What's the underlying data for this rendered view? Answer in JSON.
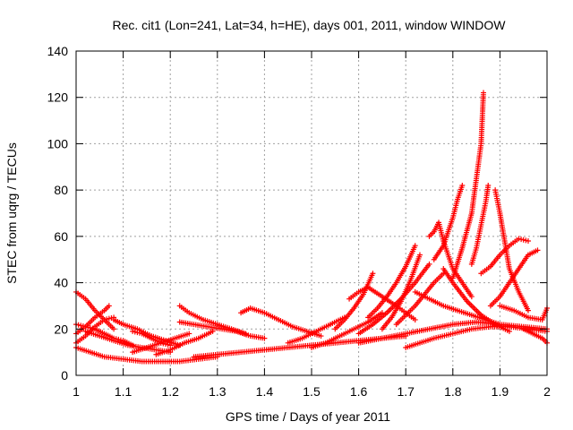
{
  "chart_data": {
    "type": "scatter",
    "title": "Rec. cit1 (Lon=241, Lat=34, h=HE), days 001, 2011, window WINDOW",
    "xlabel": "GPS time / Days of year 2011",
    "ylabel": "STEC from uqrg / TECUs",
    "xlim": [
      1,
      2
    ],
    "ylim": [
      0,
      140
    ],
    "x_ticks": [
      1,
      1.1,
      1.2,
      1.3,
      1.4,
      1.5,
      1.6,
      1.7,
      1.8,
      1.9,
      2
    ],
    "x_tick_labels": [
      "1",
      "1.1",
      "1.2",
      "1.3",
      "1.4",
      "1.5",
      "1.6",
      "1.7",
      "1.8",
      "1.9",
      "2"
    ],
    "y_ticks": [
      0,
      20,
      40,
      60,
      80,
      100,
      120,
      140
    ],
    "y_tick_labels": [
      "0",
      "20",
      "40",
      "60",
      "80",
      "100",
      "120",
      "140"
    ],
    "grid": true,
    "marker": "+",
    "color": "#ff0000",
    "series": [
      {
        "x": [
          1.0,
          1.03,
          1.06,
          1.1,
          1.14,
          1.18,
          1.22,
          1.26,
          1.3
        ],
        "y": [
          12,
          10,
          8,
          7,
          6,
          6,
          6,
          7,
          8
        ]
      },
      {
        "x": [
          1.0,
          1.02,
          1.04,
          1.06,
          1.08
        ],
        "y": [
          36,
          33,
          28,
          24,
          20
        ]
      },
      {
        "x": [
          1.0,
          1.02,
          1.04,
          1.06,
          1.08,
          1.1,
          1.12
        ],
        "y": [
          22,
          21,
          20,
          18,
          16,
          15,
          13
        ]
      },
      {
        "x": [
          1.02,
          1.05,
          1.08,
          1.11,
          1.14,
          1.17,
          1.2
        ],
        "y": [
          19,
          17,
          15,
          13,
          12,
          11,
          10
        ]
      },
      {
        "x": [
          1.0,
          1.02,
          1.04,
          1.06,
          1.07
        ],
        "y": [
          18,
          21,
          25,
          28,
          30
        ]
      },
      {
        "x": [
          1.0,
          1.02,
          1.04,
          1.06,
          1.08
        ],
        "y": [
          14,
          17,
          21,
          24,
          25
        ]
      },
      {
        "x": [
          1.08,
          1.1,
          1.13,
          1.16,
          1.19,
          1.22
        ],
        "y": [
          24,
          22,
          20,
          17,
          15,
          13
        ]
      },
      {
        "x": [
          1.12,
          1.14,
          1.16,
          1.18,
          1.2
        ],
        "y": [
          19,
          18,
          16,
          14,
          13
        ]
      },
      {
        "x": [
          1.12,
          1.15,
          1.18,
          1.21,
          1.24
        ],
        "y": [
          10,
          12,
          14,
          16,
          18
        ]
      },
      {
        "x": [
          1.17,
          1.2,
          1.23,
          1.26,
          1.29
        ],
        "y": [
          9,
          11,
          14,
          16,
          19
        ]
      },
      {
        "x": [
          1.22,
          1.24,
          1.27,
          1.3,
          1.33,
          1.36
        ],
        "y": [
          30,
          27,
          24,
          22,
          20,
          18
        ]
      },
      {
        "x": [
          1.22,
          1.25,
          1.28,
          1.31,
          1.34,
          1.37,
          1.4
        ],
        "y": [
          23,
          22,
          21,
          20,
          19,
          17,
          16
        ]
      },
      {
        "x": [
          1.25,
          1.3,
          1.35,
          1.4,
          1.45,
          1.5,
          1.55,
          1.6,
          1.65,
          1.7
        ],
        "y": [
          8,
          9,
          10,
          11,
          12,
          13,
          14,
          15,
          16,
          17
        ]
      },
      {
        "x": [
          1.35,
          1.37,
          1.4,
          1.43,
          1.46,
          1.49,
          1.52
        ],
        "y": [
          27,
          29,
          27,
          24,
          21,
          19,
          17
        ]
      },
      {
        "x": [
          1.45,
          1.48,
          1.51,
          1.54,
          1.57
        ],
        "y": [
          14,
          16,
          19,
          22,
          25
        ]
      },
      {
        "x": [
          1.5,
          1.53,
          1.56,
          1.59,
          1.62,
          1.65
        ],
        "y": [
          12,
          14,
          17,
          20,
          23,
          27
        ]
      },
      {
        "x": [
          1.55,
          1.57,
          1.59,
          1.61,
          1.63
        ],
        "y": [
          20,
          24,
          29,
          35,
          44
        ]
      },
      {
        "x": [
          1.58,
          1.6,
          1.62,
          1.65,
          1.68,
          1.7,
          1.72
        ],
        "y": [
          33,
          36,
          38,
          34,
          30,
          27,
          24
        ]
      },
      {
        "x": [
          1.6,
          1.63,
          1.66,
          1.69,
          1.72,
          1.75
        ],
        "y": [
          18,
          22,
          27,
          33,
          40,
          48
        ]
      },
      {
        "x": [
          1.62,
          1.64,
          1.66,
          1.68,
          1.7,
          1.72
        ],
        "y": [
          25,
          29,
          34,
          40,
          47,
          56
        ]
      },
      {
        "x": [
          1.65,
          1.67,
          1.69,
          1.71,
          1.73
        ],
        "y": [
          20,
          25,
          32,
          41,
          52
        ]
      },
      {
        "x": [
          1.68,
          1.7,
          1.72,
          1.74,
          1.76,
          1.78
        ],
        "y": [
          22,
          26,
          30,
          35,
          40,
          44
        ]
      },
      {
        "x": [
          1.75,
          1.76,
          1.77,
          1.78,
          1.79,
          1.8,
          1.82,
          1.84
        ],
        "y": [
          60,
          62,
          66,
          58,
          52,
          46,
          40,
          34
        ]
      },
      {
        "x": [
          1.76,
          1.78,
          1.79,
          1.8,
          1.81,
          1.82
        ],
        "y": [
          50,
          56,
          62,
          68,
          76,
          82
        ]
      },
      {
        "x": [
          1.8,
          1.82,
          1.84,
          1.85,
          1.86,
          1.865
        ],
        "y": [
          42,
          55,
          70,
          85,
          100,
          122
        ]
      },
      {
        "x": [
          1.84,
          1.85,
          1.86,
          1.87,
          1.875
        ],
        "y": [
          48,
          55,
          65,
          75,
          82
        ]
      },
      {
        "x": [
          1.89,
          1.9,
          1.91,
          1.92,
          1.94,
          1.96
        ],
        "y": [
          80,
          70,
          58,
          46,
          36,
          28
        ]
      },
      {
        "x": [
          1.86,
          1.88,
          1.9,
          1.92,
          1.94,
          1.96
        ],
        "y": [
          44,
          47,
          52,
          56,
          59,
          58
        ]
      },
      {
        "x": [
          1.88,
          1.9,
          1.92,
          1.94,
          1.96,
          1.98
        ],
        "y": [
          30,
          34,
          40,
          46,
          52,
          54
        ]
      },
      {
        "x": [
          1.7,
          1.73,
          1.76,
          1.8,
          1.84,
          1.88,
          1.92,
          1.96,
          2.0
        ],
        "y": [
          12,
          14,
          16,
          18,
          20,
          21,
          21,
          20,
          19
        ]
      },
      {
        "x": [
          1.6,
          1.65,
          1.7,
          1.75,
          1.8,
          1.85,
          1.9,
          1.95,
          2.0
        ],
        "y": [
          14,
          16,
          18,
          20,
          22,
          23,
          22,
          21,
          20
        ]
      },
      {
        "x": [
          1.9,
          1.93,
          1.96,
          1.99,
          2.0
        ],
        "y": [
          30,
          28,
          25,
          24,
          29
        ]
      },
      {
        "x": [
          1.95,
          1.97,
          1.99,
          2.0
        ],
        "y": [
          20,
          18,
          16,
          14
        ]
      },
      {
        "x": [
          1.78,
          1.8,
          1.83,
          1.86,
          1.89,
          1.92
        ],
        "y": [
          46,
          40,
          32,
          26,
          22,
          19
        ]
      },
      {
        "x": [
          1.72,
          1.75,
          1.78,
          1.81,
          1.84,
          1.87,
          1.9
        ],
        "y": [
          36,
          33,
          30,
          28,
          26,
          24,
          22
        ]
      }
    ]
  }
}
